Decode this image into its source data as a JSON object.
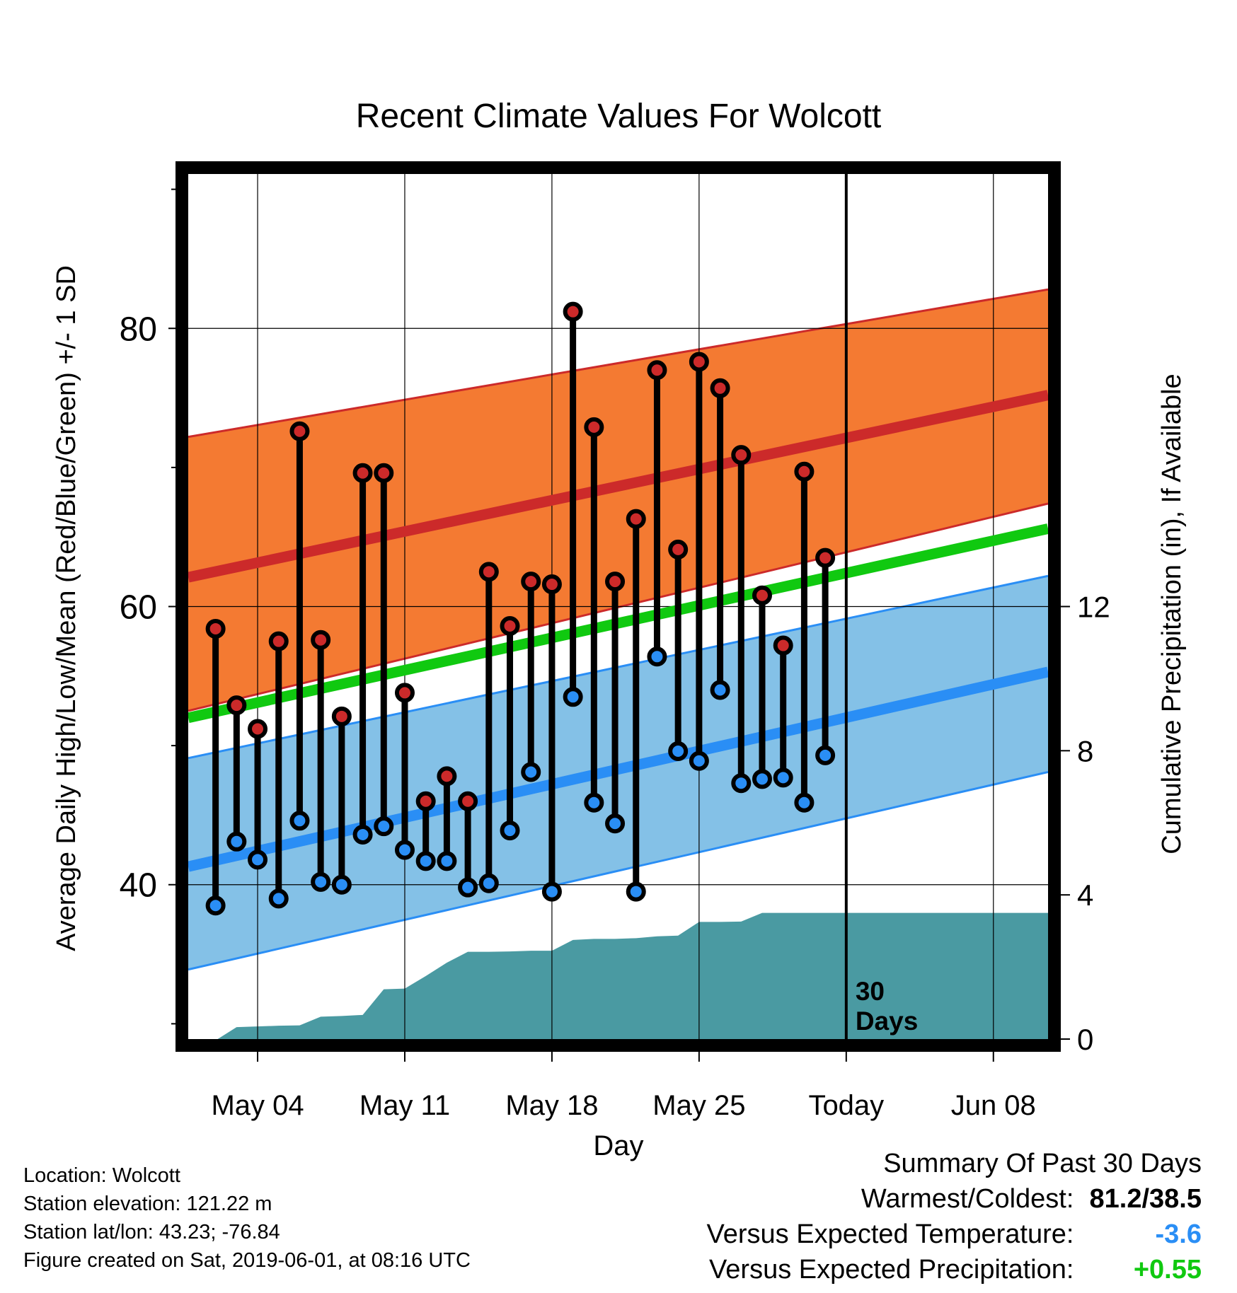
{
  "chart_data": {
    "type": "line",
    "title": "Recent Climate Values For Wolcott",
    "xlabel": "Day",
    "ylabel_left": "Average Daily High/Low/Mean (Red/Blue/Green) +/- 1 SD",
    "ylabel_right": "Cumulative Precipitation (in), If Available",
    "x_ticks": [
      "May 04",
      "May 11",
      "May 18",
      "May 25",
      "Today",
      "Jun 08"
    ],
    "x_tick_days": [
      4,
      11,
      18,
      25,
      32,
      39
    ],
    "x_range": [
      0.7,
      41.6
    ],
    "y_left_ticks": [
      40,
      60,
      80
    ],
    "y_left_minor": [
      30,
      50,
      70,
      90
    ],
    "y_left_range": [
      28.9,
      91.1
    ],
    "y_right_ticks": [
      0,
      4,
      8,
      12
    ],
    "y_right_range": [
      0,
      24
    ],
    "today_day": 32,
    "today_label": "30 Days",
    "normals": {
      "high_mean": [
        62.1,
        75.2
      ],
      "high_upper": [
        72.2,
        82.8
      ],
      "high_lower": [
        52.5,
        67.4
      ],
      "low_mean": [
        41.3,
        55.3
      ],
      "low_upper": [
        49.1,
        62.2
      ],
      "low_lower": [
        33.9,
        48.1
      ],
      "mean": [
        52.0,
        65.6
      ],
      "days": [
        0.7,
        41.6
      ]
    },
    "series": [
      {
        "name": "High",
        "days": [
          2,
          3,
          4,
          5,
          6,
          7,
          8,
          9,
          10,
          11,
          12,
          13,
          14,
          15,
          16,
          17,
          18,
          19,
          20,
          21,
          22,
          23,
          24,
          25,
          26,
          27,
          28,
          29,
          30,
          31
        ],
        "values": [
          58.4,
          52.9,
          51.2,
          57.5,
          72.6,
          57.6,
          52.1,
          69.6,
          69.6,
          53.8,
          46.0,
          47.8,
          46.0,
          62.5,
          58.6,
          61.8,
          61.6,
          81.2,
          72.9,
          61.8,
          66.3,
          77.0,
          64.1,
          77.6,
          75.7,
          70.9,
          60.8,
          57.2,
          69.7,
          63.5
        ]
      },
      {
        "name": "Low",
        "days": [
          2,
          3,
          4,
          5,
          6,
          7,
          8,
          9,
          10,
          11,
          12,
          13,
          14,
          15,
          16,
          17,
          18,
          19,
          20,
          21,
          22,
          23,
          24,
          25,
          26,
          27,
          28,
          29,
          30,
          31
        ],
        "values": [
          38.5,
          43.1,
          41.8,
          39.0,
          44.6,
          40.2,
          40.0,
          43.6,
          44.2,
          42.5,
          41.7,
          41.7,
          39.8,
          40.1,
          43.9,
          48.1,
          39.5,
          53.5,
          45.9,
          44.4,
          39.5,
          56.4,
          49.6,
          48.9,
          54.0,
          47.3,
          47.6,
          47.7,
          45.9,
          49.3
        ]
      }
    ],
    "precip": {
      "days": [
        0.7,
        2.1,
        3.0,
        4.0,
        5.0,
        6.0,
        7.0,
        8.0,
        9.0,
        10.0,
        11.0,
        12.0,
        13.0,
        14.0,
        15.0,
        16.0,
        17.0,
        18.0,
        19.0,
        20.0,
        21.0,
        22.0,
        23.0,
        24.0,
        25.0,
        26.0,
        27.0,
        28.0,
        29.0,
        30.0,
        31.0,
        32.0,
        41.6
      ],
      "values": [
        0,
        0,
        0.33,
        0.35,
        0.37,
        0.38,
        0.62,
        0.64,
        0.67,
        1.38,
        1.4,
        1.75,
        2.12,
        2.42,
        2.42,
        2.43,
        2.45,
        2.45,
        2.75,
        2.78,
        2.78,
        2.8,
        2.85,
        2.87,
        3.25,
        3.25,
        3.26,
        3.5,
        3.5,
        3.5,
        3.5,
        3.5,
        3.5
      ]
    }
  },
  "station": {
    "location": "Location: Wolcott",
    "elevation": "Station elevation: 121.22 m",
    "latlon": "Station lat/lon: 43.23; -76.84",
    "created": "Figure created on Sat, 2019-06-01, at 08:16 UTC"
  },
  "summary": {
    "heading": "Summary Of Past 30 Days",
    "warm_cold_label": "Warmest/Coldest:",
    "warm_cold_value": "81.2/38.5",
    "temp_label": "Versus Expected Temperature:",
    "temp_value": "-3.6",
    "precip_label": "Versus Expected Precipitation:",
    "precip_value": "+0.55"
  },
  "colors": {
    "high_band": "#f47a32",
    "high_line": "#cc2a2a",
    "low_band": "#84c1e7",
    "low_line": "#2a8ef5",
    "mean_line": "#10c910",
    "precip_fill": "#4a9aa2",
    "high_marker": "#cc2a2a",
    "low_marker": "#2a8ef5",
    "temp_value": "#2a8ef5",
    "precip_value": "#10c910"
  }
}
